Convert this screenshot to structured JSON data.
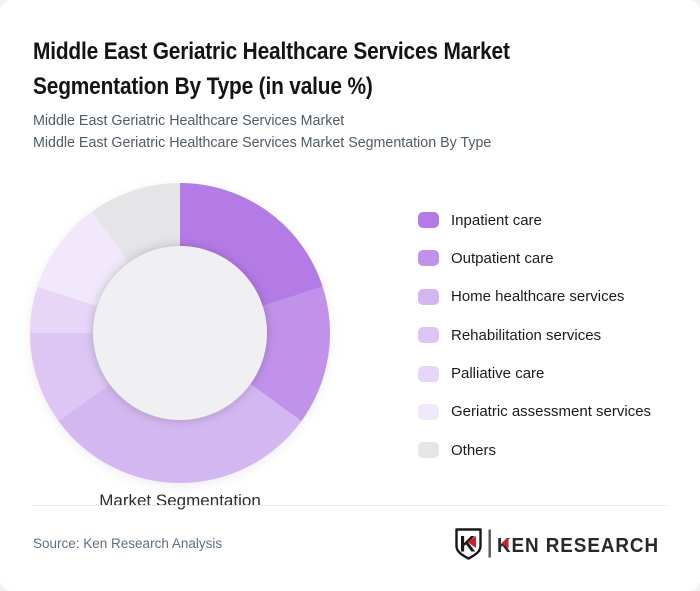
{
  "header": {
    "title_line1": "Middle East Geriatric Healthcare Services Market",
    "title_line2": "Segmentation By Type (in value %)",
    "subtitle_line1": "Middle East Geriatric Healthcare Services Market",
    "subtitle_line2": "Middle East Geriatric Healthcare Services Market Segmentation By Type"
  },
  "chart_data": {
    "type": "pie",
    "subtype": "donut",
    "title": "Middle East Geriatric Healthcare Services Market Segmentation By Type (in value %)",
    "center_label": "Market Segmentation",
    "unit": "%",
    "start_angle_deg": 0,
    "direction": "clockwise",
    "legend_position": "right",
    "series": [
      {
        "label": "Inpatient care",
        "value": 20,
        "color": "#b47be6"
      },
      {
        "label": "Outpatient care",
        "value": 15,
        "color": "#c192ea"
      },
      {
        "label": "Home healthcare services",
        "value": 30,
        "color": "#d3b7f1"
      },
      {
        "label": "Rehabilitation services",
        "value": 10,
        "color": "#ddc6f4"
      },
      {
        "label": "Palliative care",
        "value": 5,
        "color": "#e7d6f8"
      },
      {
        "label": "Geriatric assessment services",
        "value": 10,
        "color": "#f1e9fb"
      },
      {
        "label": "Others",
        "value": 10,
        "color": "#e5e4e6"
      }
    ],
    "center_circle_color": "#f0eff1"
  },
  "footer": {
    "source": "Source: Ken Research Analysis",
    "logo_mark": "K",
    "logo_text": "KEN RESEARCH",
    "logo_red": "#c8232b",
    "logo_dark": "#26282b"
  }
}
